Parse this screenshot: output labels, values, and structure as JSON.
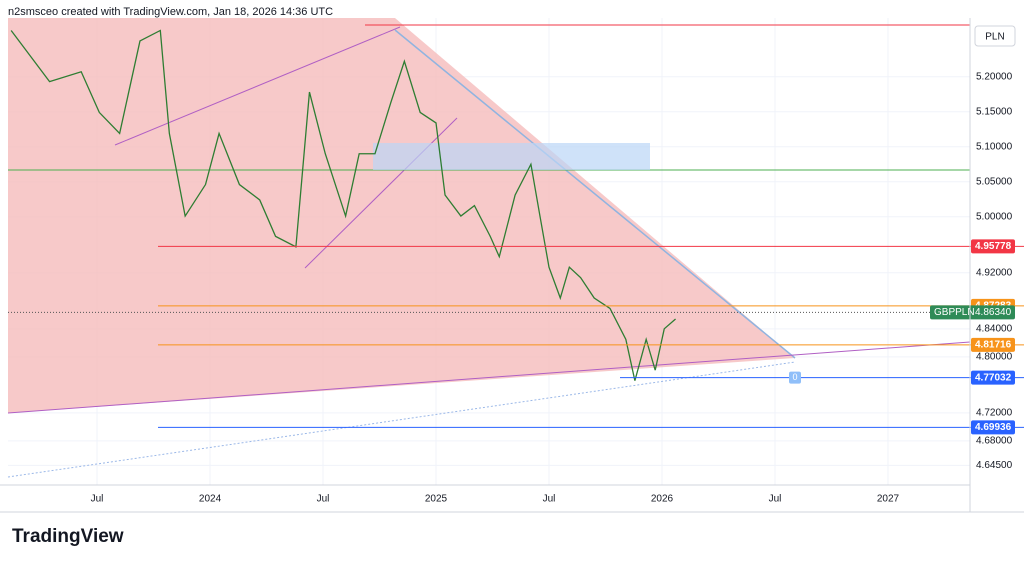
{
  "header": "n2smsceo created with TradingView.com, Jan 18, 2026 14:36 UTC",
  "brand": "TradingView",
  "chart_data": {
    "type": "line",
    "currency": "PLN",
    "symbol": "GBPPLN",
    "series": [
      {
        "name": "GBPPLN",
        "color": "#2e7d32",
        "x": [
          2023.12,
          2023.29,
          2023.43,
          2023.51,
          2023.6,
          2023.69,
          2023.78,
          2023.82,
          2023.89,
          2023.98,
          2024.04,
          2024.13,
          2024.22,
          2024.29,
          2024.38,
          2024.44,
          2024.51,
          2024.6,
          2024.66,
          2024.73,
          2024.8,
          2024.86,
          2024.93,
          2025.0,
          2025.04,
          2025.11,
          2025.17,
          2025.24,
          2025.28,
          2025.35,
          2025.42,
          2025.46,
          2025.5,
          2025.55,
          2025.59,
          2025.64,
          2025.7,
          2025.77,
          2025.84,
          2025.88,
          2025.93,
          2025.97,
          2026.01,
          2026.06
        ],
        "values": [
          5.266,
          5.193,
          5.207,
          5.149,
          5.119,
          5.251,
          5.266,
          5.119,
          5.001,
          5.046,
          5.119,
          5.046,
          5.024,
          4.972,
          4.957,
          5.178,
          5.09,
          5.001,
          5.09,
          5.09,
          5.163,
          5.222,
          5.149,
          5.134,
          5.031,
          5.001,
          5.016,
          4.972,
          4.943,
          5.031,
          5.075,
          5.001,
          4.928,
          4.884,
          4.928,
          4.913,
          4.884,
          4.869,
          4.825,
          4.766,
          4.825,
          4.781,
          4.84,
          4.854
        ]
      }
    ],
    "last_price": {
      "value": 4.8634,
      "value_label": "4.86340"
    },
    "levels": {
      "values": [
        4.95778,
        4.87283,
        4.81716,
        4.77032,
        4.69936
      ],
      "colors": [
        "#f23645",
        "#f7931a",
        "#f7931a",
        "#2962ff",
        "#2962ff"
      ]
    },
    "xlim": [
      2023.106,
      2027.363
    ],
    "xticks": [
      {
        "value": 2023.5,
        "label": "Jul"
      },
      2024,
      {
        "value": 2024.5,
        "label": "Jul"
      },
      2025,
      {
        "value": 2025.5,
        "label": "Jul"
      },
      2026,
      {
        "value": 2026.5,
        "label": "Jul"
      },
      2027
    ],
    "ylim": [
      4.617,
      5.2838
    ],
    "yticks": [
      {
        "value": 5.2,
        "label": "5.20000"
      },
      {
        "value": 5.15,
        "label": "5.15000"
      },
      {
        "value": 5.1,
        "label": "5.10000"
      },
      {
        "value": 5.05,
        "label": "5.05000"
      },
      {
        "value": 5.0,
        "label": "5.00000"
      },
      {
        "value": 4.92,
        "label": "4.92000"
      },
      {
        "value": 4.84,
        "label": "4.84000"
      },
      {
        "value": 4.8,
        "label": "4.80000"
      },
      {
        "value": 4.72,
        "label": "4.72000"
      },
      {
        "value": 4.68,
        "label": "4.68000"
      },
      {
        "value": 4.645,
        "label": "4.64500"
      }
    ],
    "grid": true,
    "marker": "0"
  }
}
